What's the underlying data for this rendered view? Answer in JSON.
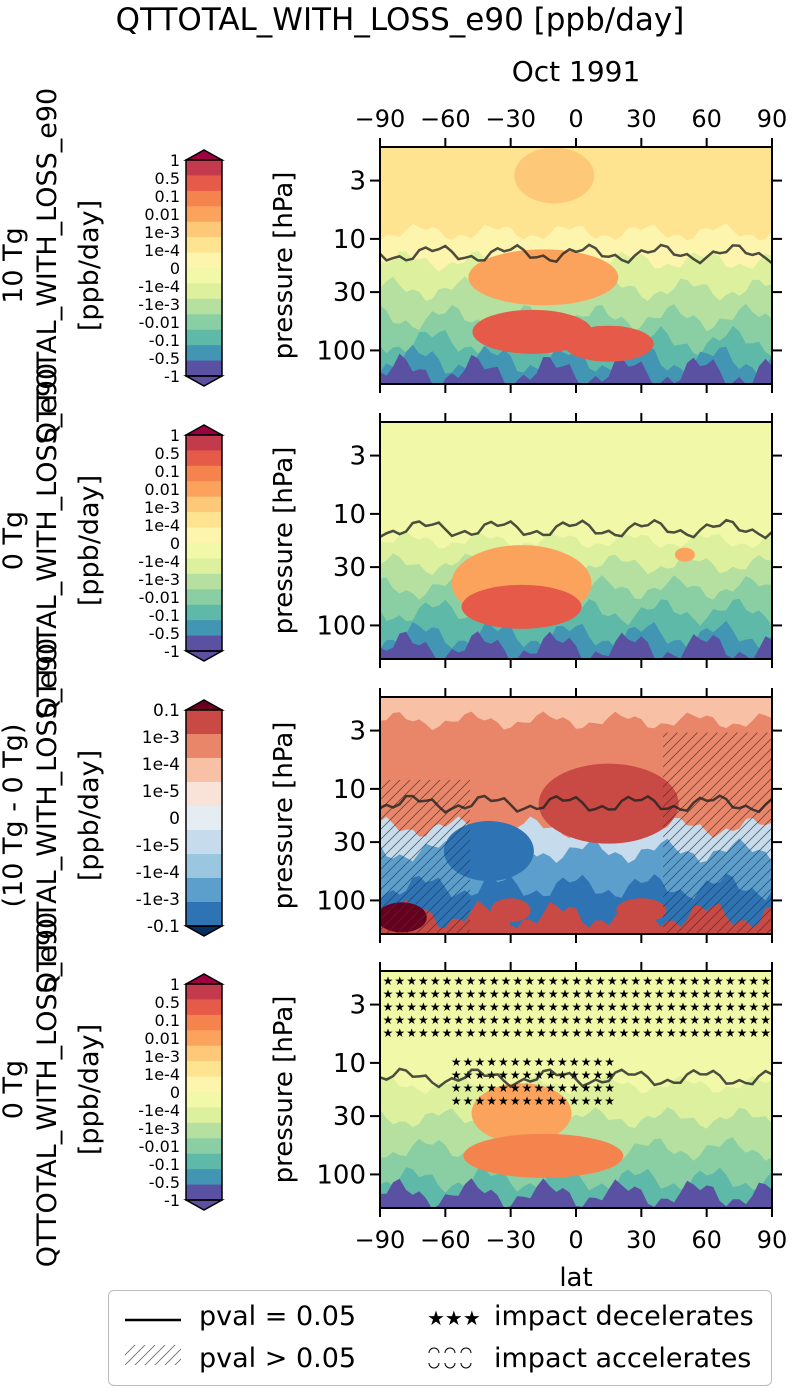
{
  "figure": {
    "title": "QTTOTAL_WITH_LOSS_e90 [ppb/day]",
    "time_label": "Oct 1991",
    "xlabel": "lat",
    "ylabel": "pressure [hPa]",
    "xticks": [
      "−90",
      "−60",
      "−30",
      "0",
      "30",
      "60",
      "90"
    ],
    "yticks": [
      "3",
      "10",
      "30",
      "100"
    ]
  },
  "panels": [
    {
      "row_label": "10 Tg",
      "cbar_label": "QTTOTAL_WITH_LOSS_e90",
      "cbar_units": "[ppb/day]"
    },
    {
      "row_label": "0 Tg",
      "cbar_label": "QTTOTAL_WITH_LOSS_e90",
      "cbar_units": "[ppb/day]"
    },
    {
      "row_label": "(10 Tg - 0 Tg)",
      "cbar_label": "QTTOTAL_WITH_LOSS_e90",
      "cbar_units": "[ppb/day]"
    },
    {
      "row_label": "0 Tg",
      "cbar_label": "QTTOTAL_WITH_LOSS_e90",
      "cbar_units": "[ppb/day]"
    }
  ],
  "colorbar_full": {
    "ticks": [
      "1",
      "0.5",
      "0.1",
      "0.01",
      "1e-3",
      "1e-4",
      "0",
      "-1e-4",
      "-1e-3",
      "-0.01",
      "-0.1",
      "-0.5",
      "-1"
    ],
    "colors": [
      "#c23a4b",
      "#e55a48",
      "#f4834e",
      "#fba35d",
      "#fdc878",
      "#fee491",
      "#fdf5ae",
      "#f1f9a9",
      "#dcf09d",
      "#b5e0a0",
      "#8acfa4",
      "#5eb9a9",
      "#4296b4",
      "#5a51a3"
    ],
    "max_color": "#9e0142",
    "min_color": "#5e4fa2"
  },
  "colorbar_diff": {
    "ticks": [
      "0.1",
      "1e-3",
      "1e-4",
      "1e-5",
      "0",
      "-1e-5",
      "-1e-4",
      "-1e-3",
      "-0.1"
    ],
    "colors": [
      "#c94a44",
      "#e9866a",
      "#f8c0a5",
      "#f9e3d8",
      "#e5edf3",
      "#c6dbec",
      "#9bc6e0",
      "#5d9fcc",
      "#2e74b4"
    ],
    "max_color": "#67001f",
    "min_color": "#053061"
  },
  "legend": {
    "line_label": "pval = 0.05",
    "hatch_label": "pval > 0.05",
    "stars_label": "impact decelerates",
    "circles_label": "impact accelerates"
  },
  "chart_data": [
    {
      "type": "heatmap",
      "title": "10 Tg",
      "xlabel": "",
      "ylabel": "pressure [hPa]",
      "xlim": [
        -90,
        90
      ],
      "ylim_hPa": [
        200,
        1.5
      ],
      "yscale": "log",
      "colorbar": "QTTOTAL_WITH_LOSS_e90 [ppb/day]",
      "features": [
        {
          "x": [
            -90,
            90
          ],
          "p": [
            1.5,
            8
          ],
          "value": "0.1 to 1e-4"
        },
        {
          "x": [
            -10,
            15
          ],
          "p": [
            2,
            8
          ],
          "value": "1e-3 to 1e-4"
        },
        {
          "x": [
            -90,
            90
          ],
          "p": [
            20,
            60
          ],
          "value": "-1e-4 to -0.01"
        },
        {
          "x": [
            -45,
            30
          ],
          "p": [
            15,
            50
          ],
          "value": "0.01 to 0.1"
        },
        {
          "x": [
            -40,
            20
          ],
          "p": [
            60,
            150
          ],
          "value": "0.5 to 1"
        },
        {
          "x": [
            -90,
            90
          ],
          "p": [
            150,
            200
          ],
          "value": "-0.5 to -1"
        }
      ]
    },
    {
      "type": "heatmap",
      "title": "0 Tg",
      "xlabel": "",
      "ylabel": "pressure [hPa]",
      "xlim": [
        -90,
        90
      ],
      "ylim_hPa": [
        200,
        1.5
      ],
      "yscale": "log",
      "colorbar": "QTTOTAL_WITH_LOSS_e90 [ppb/day]",
      "features": [
        {
          "x": [
            -90,
            90
          ],
          "p": [
            1.5,
            15
          ],
          "value": "-1e-4 to 0"
        },
        {
          "x": [
            -90,
            90
          ],
          "p": [
            20,
            60
          ],
          "value": "-1e-3 to -0.1"
        },
        {
          "x": [
            -45,
            0
          ],
          "p": [
            40,
            120
          ],
          "value": "0.1 to 1"
        },
        {
          "x": [
            -90,
            90
          ],
          "p": [
            150,
            200
          ],
          "value": "-0.5 to -1"
        }
      ]
    },
    {
      "type": "heatmap",
      "title": "(10 Tg - 0 Tg)",
      "xlabel": "",
      "ylabel": "pressure [hPa]",
      "xlim": [
        -90,
        90
      ],
      "ylim_hPa": [
        200,
        1.5
      ],
      "yscale": "log",
      "colorbar": "QTTOTAL_WITH_LOSS_e90 [ppb/day]",
      "features": [
        {
          "x": [
            -90,
            90
          ],
          "p": [
            1.5,
            15
          ],
          "value": "1e-5 to 1e-4"
        },
        {
          "x": [
            -20,
            40
          ],
          "p": [
            10,
            50
          ],
          "value": "1e-4 to 1e-3"
        },
        {
          "x": [
            -60,
            -10
          ],
          "p": [
            30,
            100
          ],
          "value": "-1e-4 to -1e-3"
        },
        {
          "x": [
            -90,
            90
          ],
          "p": [
            100,
            200
          ],
          "value": "mixed, up to 0.1"
        }
      ]
    },
    {
      "type": "heatmap",
      "title": "0 Tg",
      "xlabel": "lat",
      "ylabel": "pressure [hPa]",
      "xlim": [
        -90,
        90
      ],
      "ylim_hPa": [
        200,
        1.5
      ],
      "yscale": "log",
      "colorbar": "QTTOTAL_WITH_LOSS_e90 [ppb/day]",
      "features": [
        {
          "x": [
            -90,
            90
          ],
          "p": [
            1.5,
            12
          ],
          "value": "-1e-4 to 0"
        },
        {
          "x": [
            -45,
            0
          ],
          "p": [
            40,
            120
          ],
          "value": "0.1 to 1"
        },
        {
          "x": [
            -90,
            90
          ],
          "p": [
            150,
            200
          ],
          "value": "-0.5 to -1"
        }
      ],
      "markers": "stars (impact decelerates) over p < 15 hPa and tropics 20-80 hPa"
    }
  ]
}
